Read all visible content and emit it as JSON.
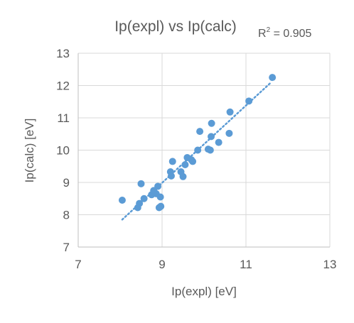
{
  "chart_data": {
    "type": "scatter",
    "title": "Ip(expl) vs Ip(calc)",
    "r2_label": "R",
    "r2_sup": "2",
    "r2_value": " = 0.905",
    "xlabel": "Ip(expl) [eV]",
    "ylabel": "Ip(calc) [eV]",
    "xlim": [
      7,
      13
    ],
    "ylim": [
      7,
      13
    ],
    "xticks": [
      7,
      9,
      11,
      13
    ],
    "yticks": [
      7,
      8,
      9,
      10,
      11,
      12,
      13
    ],
    "grid": true,
    "legend": "none",
    "marker_color": "#5B9BD5",
    "trendline": {
      "style": "dotted",
      "color": "#5B9BD5",
      "x": [
        8.05,
        11.6
      ],
      "y": [
        7.85,
        12.1
      ]
    },
    "x": [
      8.05,
      8.42,
      8.46,
      8.5,
      8.57,
      8.75,
      8.8,
      8.86,
      8.9,
      8.93,
      8.96,
      8.97,
      9.2,
      9.22,
      9.25,
      9.45,
      9.5,
      9.55,
      9.6,
      9.7,
      9.73,
      9.85,
      9.9,
      10.1,
      10.15,
      10.17,
      10.18,
      10.35,
      10.6,
      10.62,
      11.07,
      11.63
    ],
    "y": [
      8.45,
      8.22,
      8.35,
      8.96,
      8.5,
      8.62,
      8.75,
      8.65,
      8.88,
      8.22,
      8.55,
      8.26,
      9.33,
      9.2,
      9.65,
      9.33,
      9.18,
      9.55,
      9.77,
      9.7,
      9.65,
      10.0,
      10.58,
      10.03,
      10.0,
      10.42,
      10.83,
      10.24,
      10.52,
      11.18,
      11.52,
      12.25
    ]
  }
}
